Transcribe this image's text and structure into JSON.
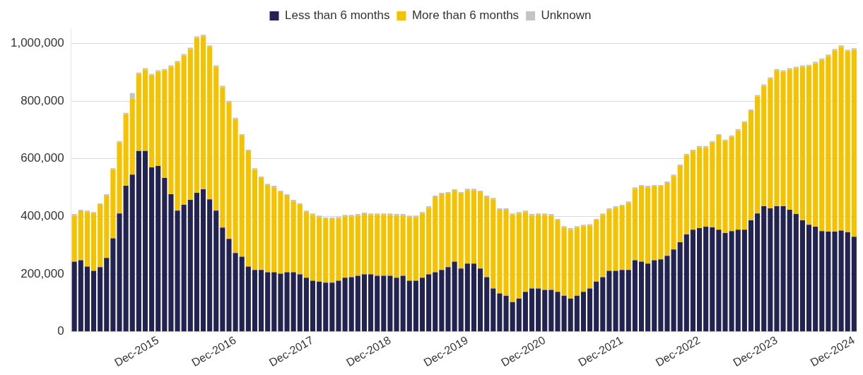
{
  "chart_data": {
    "type": "bar",
    "stacked": true,
    "legend": "top",
    "grid": "y",
    "categories": [
      null,
      null,
      null,
      null,
      null,
      null,
      null,
      null,
      null,
      null,
      null,
      null,
      null,
      "Dec-2015",
      null,
      null,
      null,
      null,
      null,
      null,
      null,
      null,
      null,
      null,
      null,
      "Dec-2016",
      null,
      null,
      null,
      null,
      null,
      null,
      null,
      null,
      null,
      null,
      null,
      "Dec-2017",
      null,
      null,
      null,
      null,
      null,
      null,
      null,
      null,
      null,
      null,
      null,
      "Dec-2018",
      null,
      null,
      null,
      null,
      null,
      null,
      null,
      null,
      null,
      null,
      null,
      "Dec-2019",
      null,
      null,
      null,
      null,
      null,
      null,
      null,
      null,
      null,
      null,
      null,
      "Dec-2020",
      null,
      null,
      null,
      null,
      null,
      null,
      null,
      null,
      null,
      null,
      null,
      "Dec-2021",
      null,
      null,
      null,
      null,
      null,
      null,
      null,
      null,
      null,
      null,
      null,
      "Dec-2022",
      null,
      null,
      null,
      null,
      null,
      null,
      null,
      null,
      null,
      null,
      null,
      "Dec-2023",
      null,
      null,
      null,
      null,
      null,
      null,
      null,
      null,
      null,
      null,
      null,
      "Dec-2024"
    ],
    "ylim": [
      0,
      1050000
    ],
    "yticks": [
      0,
      {
        "value": 200000,
        "label": "200,000"
      },
      {
        "value": 400000,
        "label": "400,000"
      },
      {
        "value": 600000,
        "label": "600,000"
      },
      {
        "value": 800000,
        "label": "800,000"
      },
      {
        "value": 1000000,
        "label": "1,000,000"
      }
    ],
    "series": [
      {
        "name": "Less than 6 months",
        "color": "#232352",
        "values": [
          243000,
          248000,
          226000,
          211000,
          224000,
          256000,
          324000,
          410000,
          506000,
          545000,
          627000,
          627000,
          570000,
          575000,
          533000,
          477000,
          420000,
          440000,
          457000,
          482000,
          494000,
          459000,
          420000,
          361000,
          322000,
          273000,
          260000,
          226000,
          214000,
          214000,
          206000,
          206000,
          201000,
          206000,
          206000,
          199000,
          187000,
          177000,
          174000,
          170000,
          170000,
          177000,
          187000,
          189000,
          194000,
          199000,
          199000,
          194000,
          194000,
          194000,
          187000,
          194000,
          177000,
          177000,
          187000,
          199000,
          206000,
          214000,
          224000,
          243000,
          219000,
          236000,
          236000,
          219000,
          189000,
          150000,
          133000,
          125000,
          103000,
          115000,
          138000,
          150000,
          150000,
          145000,
          145000,
          138000,
          125000,
          115000,
          125000,
          138000,
          150000,
          174000,
          189000,
          211000,
          211000,
          214000,
          214000,
          248000,
          243000,
          236000,
          248000,
          251000,
          263000,
          285000,
          310000,
          337000,
          354000,
          359000,
          364000,
          362000,
          354000,
          342000,
          349000,
          354000,
          354000,
          386000,
          410000,
          435000,
          428000,
          435000,
          435000,
          423000,
          408000,
          386000,
          371000,
          364000,
          349000,
          347000,
          347000,
          351000,
          345000,
          329000
        ]
      },
      {
        "name": "More than 6 months",
        "color": "#f5c200",
        "values": [
          160000,
          170000,
          189000,
          199000,
          216000,
          216000,
          238000,
          246000,
          248000,
          263000,
          267000,
          282000,
          319000,
          327000,
          373000,
          442000,
          514000,
          518000,
          523000,
          537000,
          531000,
          529000,
          499000,
          487000,
          474000,
          464000,
          420000,
          400000,
          348000,
          319000,
          302000,
          295000,
          283000,
          266000,
          246000,
          241000,
          228000,
          228000,
          224000,
          221000,
          221000,
          216000,
          213000,
          211000,
          209000,
          209000,
          206000,
          211000,
          211000,
          211000,
          216000,
          209000,
          221000,
          221000,
          223000,
          231000,
          261000,
          263000,
          255000,
          246000,
          260000,
          255000,
          255000,
          265000,
          278000,
          309000,
          290000,
          298000,
          302000,
          295000,
          277000,
          253000,
          255000,
          260000,
          258000,
          248000,
          236000,
          239000,
          236000,
          228000,
          218000,
          212000,
          216000,
          212000,
          219000,
          221000,
          233000,
          248000,
          261000,
          265000,
          256000,
          253000,
          253000,
          255000,
          265000,
          275000,
          272000,
          280000,
          275000,
          294000,
          326000,
          319000,
          327000,
          344000,
          371000,
          380000,
          406000,
          418000,
          449000,
          471000,
          467000,
          486000,
          506000,
          533000,
          550000,
          567000,
          594000,
          609000,
          628000,
          637000,
          628000,
          649000
        ]
      },
      {
        "name": "Unknown",
        "color": "#c4c4c4",
        "values": [
          5000,
          5000,
          5000,
          5000,
          5000,
          5000,
          5000,
          5000,
          5000,
          20000,
          5000,
          5000,
          5000,
          5000,
          5000,
          5000,
          5000,
          5000,
          5000,
          5000,
          5000,
          5000,
          5000,
          5000,
          5000,
          5000,
          5000,
          5000,
          5000,
          5000,
          5000,
          5000,
          5000,
          5000,
          5000,
          5000,
          5000,
          5000,
          5000,
          5000,
          5000,
          5000,
          5000,
          5000,
          5000,
          5000,
          5000,
          5000,
          5000,
          5000,
          5000,
          5000,
          5000,
          5000,
          5000,
          5000,
          5000,
          5000,
          5000,
          5000,
          5000,
          5000,
          5000,
          5000,
          5000,
          5000,
          5000,
          5000,
          5000,
          5000,
          5000,
          5000,
          5000,
          5000,
          5000,
          5000,
          5000,
          5000,
          5000,
          5000,
          5000,
          5000,
          5000,
          5000,
          5000,
          5000,
          5000,
          5000,
          5000,
          5000,
          5000,
          5000,
          5000,
          5000,
          5000,
          5000,
          5000,
          5000,
          5000,
          5000,
          5000,
          5000,
          5000,
          5000,
          5000,
          5000,
          5000,
          5000,
          5000,
          5000,
          5000,
          5000,
          5000,
          5000,
          5000,
          5000,
          5000,
          5000,
          5000,
          5000,
          5000,
          5000
        ]
      }
    ]
  }
}
